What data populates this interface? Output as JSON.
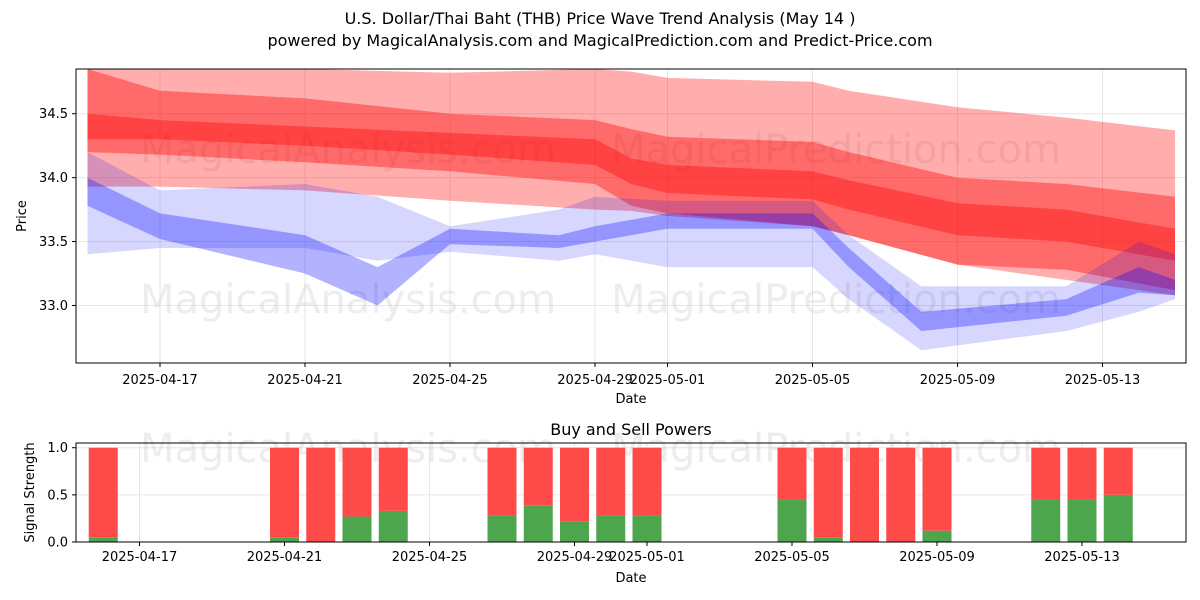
{
  "title": "U.S. Dollar/Thai Baht (THB) Price Wave Trend Analysis (May 14 )",
  "subtitle": "powered by MagicalAnalysis.com and MagicalPrediction.com and Predict-Price.com",
  "watermarks": [
    "MagicalAnalysis.com",
    "MagicalPrediction.com"
  ],
  "colors": {
    "bull": "#ff0000",
    "bear": "#0000ff",
    "buy": "#4da64d",
    "sell": "#ff4a4a"
  },
  "chart_data": [
    {
      "type": "area",
      "xlabel": "Date",
      "ylabel": "Price",
      "ylim": [
        32.55,
        34.85
      ],
      "x_tick_labels": [
        "2025-04-17",
        "2025-04-21",
        "2025-04-25",
        "2025-04-29",
        "2025-05-01",
        "2025-05-05",
        "2025-05-09",
        "2025-05-13"
      ],
      "y_tick_labels": [
        "33.0",
        "33.5",
        "34.0",
        "34.5"
      ],
      "grid": true,
      "series": [
        {
          "x": [
            "2025-04-15",
            "2025-04-17",
            "2025-04-21",
            "2025-04-25",
            "2025-04-29",
            "2025-04-30",
            "2025-05-01",
            "2025-05-05",
            "2025-05-06",
            "2025-05-09",
            "2025-05-12",
            "2025-05-15"
          ],
          "upper": [
            34.85,
            34.85,
            34.85,
            34.82,
            34.85,
            34.83,
            34.78,
            34.75,
            34.68,
            34.55,
            34.47,
            34.37
          ],
          "lower": [
            33.93,
            33.93,
            33.9,
            33.82,
            33.75,
            33.74,
            33.7,
            33.62,
            33.55,
            33.32,
            33.2,
            33.08
          ]
        },
        {
          "x": [
            "2025-04-15",
            "2025-04-17",
            "2025-04-21",
            "2025-04-25",
            "2025-04-29",
            "2025-04-30",
            "2025-05-01",
            "2025-05-05",
            "2025-05-06",
            "2025-05-09",
            "2025-05-12",
            "2025-05-15"
          ],
          "upper": [
            34.5,
            34.45,
            34.4,
            34.35,
            34.3,
            34.15,
            34.1,
            34.05,
            33.98,
            33.8,
            33.75,
            33.6
          ],
          "lower": [
            34.2,
            34.18,
            34.12,
            34.05,
            33.95,
            33.78,
            33.72,
            33.62,
            33.55,
            33.32,
            33.28,
            33.12
          ]
        },
        {
          "x": [
            "2025-04-15",
            "2025-04-17",
            "2025-04-21",
            "2025-04-25",
            "2025-04-29",
            "2025-04-30",
            "2025-05-01",
            "2025-05-05",
            "2025-05-06",
            "2025-05-09",
            "2025-05-12",
            "2025-05-15"
          ],
          "upper": [
            34.85,
            34.68,
            34.62,
            34.5,
            34.45,
            34.38,
            34.32,
            34.28,
            34.2,
            34.0,
            33.95,
            33.85
          ],
          "lower": [
            34.3,
            34.3,
            34.25,
            34.18,
            34.1,
            33.95,
            33.88,
            33.83,
            33.75,
            33.55,
            33.5,
            33.35
          ]
        },
        {
          "x": [
            "2025-04-15",
            "2025-04-17",
            "2025-04-21",
            "2025-04-23",
            "2025-04-25",
            "2025-04-28",
            "2025-04-29",
            "2025-05-01",
            "2025-05-05",
            "2025-05-06",
            "2025-05-08",
            "2025-05-12",
            "2025-05-14",
            "2025-05-15"
          ],
          "upper": [
            34.2,
            33.9,
            33.95,
            33.85,
            33.62,
            33.75,
            33.85,
            33.82,
            33.82,
            33.55,
            33.15,
            33.15,
            33.5,
            33.4
          ],
          "lower": [
            33.4,
            33.45,
            33.45,
            33.35,
            33.42,
            33.35,
            33.4,
            33.3,
            33.3,
            33.05,
            32.65,
            32.8,
            32.95,
            33.05
          ]
        },
        {
          "x": [
            "2025-04-15",
            "2025-04-17",
            "2025-04-21",
            "2025-04-23",
            "2025-04-25",
            "2025-04-28",
            "2025-04-29",
            "2025-05-01",
            "2025-05-05",
            "2025-05-06",
            "2025-05-08",
            "2025-05-12",
            "2025-05-14",
            "2025-05-15"
          ],
          "upper": [
            34.0,
            33.72,
            33.55,
            33.3,
            33.6,
            33.55,
            33.62,
            33.72,
            33.72,
            33.45,
            32.95,
            33.05,
            33.3,
            33.2
          ],
          "lower": [
            33.78,
            33.52,
            33.25,
            33.0,
            33.48,
            33.45,
            33.5,
            33.6,
            33.6,
            33.3,
            32.8,
            32.92,
            33.1,
            33.08
          ]
        }
      ]
    },
    {
      "type": "bar",
      "title": "Buy and Sell Powers",
      "xlabel": "Date",
      "ylabel": "Signal Strength",
      "ylim": [
        0,
        1.05
      ],
      "x_tick_labels": [
        "2025-04-17",
        "2025-04-21",
        "2025-04-25",
        "2025-04-29",
        "2025-05-01",
        "2025-05-05",
        "2025-05-09",
        "2025-05-13"
      ],
      "y_tick_labels": [
        "0.0",
        "0.5",
        "1.0"
      ],
      "categories": [
        "2025-04-16",
        "2025-04-21",
        "2025-04-22",
        "2025-04-23",
        "2025-04-24",
        "2025-04-27",
        "2025-04-28",
        "2025-04-29",
        "2025-04-30",
        "2025-05-01",
        "2025-05-05",
        "2025-05-06",
        "2025-05-07",
        "2025-05-08",
        "2025-05-09",
        "2025-05-12",
        "2025-05-13",
        "2025-05-14"
      ],
      "series": [
        {
          "values": [
            0.05,
            0.05,
            0.0,
            0.27,
            0.33,
            0.28,
            0.39,
            0.22,
            0.28,
            0.28,
            0.45,
            0.05,
            0.0,
            0.0,
            0.12,
            0.45,
            0.45,
            0.5
          ]
        },
        {
          "values": [
            0.95,
            0.95,
            1.0,
            0.73,
            0.67,
            0.72,
            0.61,
            0.78,
            0.72,
            0.72,
            0.55,
            0.95,
            1.0,
            1.0,
            0.88,
            0.55,
            0.55,
            0.5
          ]
        }
      ]
    }
  ]
}
